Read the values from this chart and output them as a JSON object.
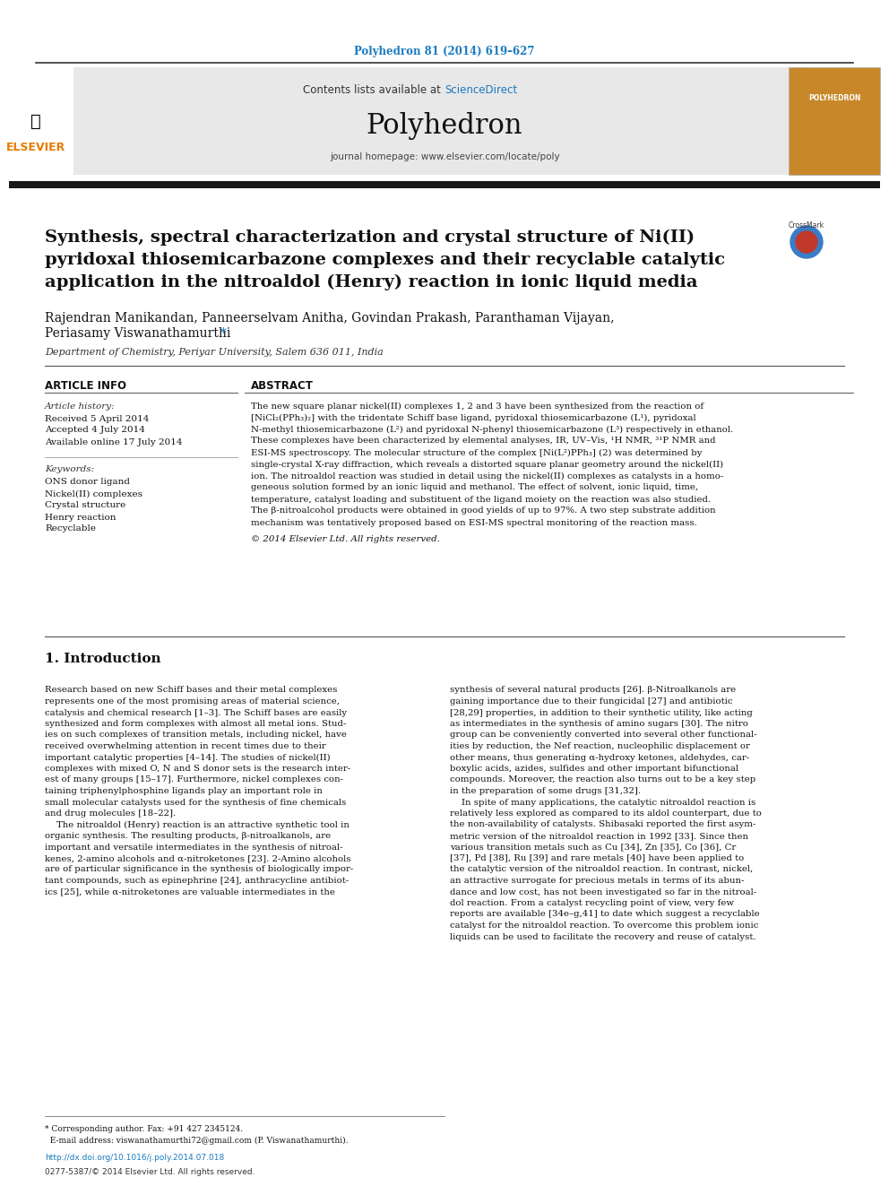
{
  "page_bg": "#ffffff",
  "top_journal_ref": "Polyhedron 81 (2014) 619–627",
  "top_journal_ref_color": "#1a7abf",
  "header_bg": "#e8e8e8",
  "header_text_contents": "Contents lists available at ",
  "header_text_sciencedirect": "ScienceDirect",
  "header_sciencedirect_color": "#1a7abf",
  "journal_name": "Polyhedron",
  "journal_homepage": "journal homepage: www.elsevier.com/locate/poly",
  "thick_bar_color": "#1a1a1a",
  "article_title": "Synthesis, spectral characterization and crystal structure of Ni(II)\npyridoxal thiosemicarbazone complexes and their recyclable catalytic\napplication in the nitroaldol (Henry) reaction in ionic liquid media",
  "authors": "Rajendran Manikandan, Panneerselvam Anitha, Govindan Prakash, Paranthaman Vijayan,\nPeriasamy Viswanathamurthi",
  "affiliation": "Department of Chemistry, Periyar University, Salem 636 011, India",
  "article_info_title": "ARTICLE INFO",
  "abstract_title": "ABSTRACT",
  "article_history_label": "Article history:",
  "received": "Received 5 April 2014",
  "accepted": "Accepted 4 July 2014",
  "available": "Available online 17 July 2014",
  "keywords_label": "Keywords:",
  "keywords": [
    "ONS donor ligand",
    "Nickel(II) complexes",
    "Crystal structure",
    "Henry reaction",
    "Recyclable"
  ],
  "abstract_text": "The new square planar nickel(II) complexes 1, 2 and 3 have been synthesized from the reaction of\n[NiCl₂(PPh₃)₂] with the tridentate Schiff base ligand, pyridoxal thiosemicarbazone (L¹), pyridoxal\nN-methyl thiosemicarbazone (L²) and pyridoxal N-phenyl thiosemicarbazone (L³) respectively in ethanol.\nThese complexes have been characterized by elemental analyses, IR, UV–Vis, ¹H NMR, ³¹P NMR and\nESI-MS spectroscopy. The molecular structure of the complex [Ni(L²)PPh₃] (2) was determined by\nsingle-crystal X-ray diffraction, which reveals a distorted square planar geometry around the nickel(II)\nion. The nitroaldol reaction was studied in detail using the nickel(II) complexes as catalysts in a homo-\ngeneous solution formed by an ionic liquid and methanol. The effect of solvent, ionic liquid, time,\ntemperature, catalyst loading and substituent of the ligand moiety on the reaction was also studied.\nThe β-nitroalcohol products were obtained in good yields of up to 97%. A two step substrate addition\nmechanism was tentatively proposed based on ESI-MS spectral monitoring of the reaction mass.",
  "copyright_text": "© 2014 Elsevier Ltd. All rights reserved.",
  "section1_title": "1. Introduction",
  "intro_col1": "Research based on new Schiff bases and their metal complexes\nrepresents one of the most promising areas of material science,\ncatalysis and chemical research [1–3]. The Schiff bases are easily\nsynthesized and form complexes with almost all metal ions. Stud-\nies on such complexes of transition metals, including nickel, have\nreceived overwhelming attention in recent times due to their\nimportant catalytic properties [4–14]. The studies of nickel(II)\ncomplexes with mixed O, N and S donor sets is the research inter-\nest of many groups [15–17]. Furthermore, nickel complexes con-\ntaining triphenylphosphine ligands play an important role in\nsmall molecular catalysts used for the synthesis of fine chemicals\nand drug molecules [18–22].\n    The nitroaldol (Henry) reaction is an attractive synthetic tool in\norganic synthesis. The resulting products, β-nitroalkanols, are\nimportant and versatile intermediates in the synthesis of nitroal-\nkenes, 2-amino alcohols and α-nitroketones [23]. 2-Amino alcohols\nare of particular significance in the synthesis of biologically impor-\ntant compounds, such as epinephrine [24], anthracycline antibiot-\nics [25], while α-nitroketones are valuable intermediates in the",
  "intro_col2": "synthesis of several natural products [26]. β-Nitroalkanols are\ngaining importance due to their fungicidal [27] and antibiotic\n[28,29] properties, in addition to their synthetic utility, like acting\nas intermediates in the synthesis of amino sugars [30]. The nitro\ngroup can be conveniently converted into several other functional-\nities by reduction, the Nef reaction, nucleophilic displacement or\nother means, thus generating α-hydroxy ketones, aldehydes, car-\nboxylic acids, azides, sulfides and other important bifunctional\ncompounds. Moreover, the reaction also turns out to be a key step\nin the preparation of some drugs [31,32].\n    In spite of many applications, the catalytic nitroaldol reaction is\nrelatively less explored as compared to its aldol counterpart, due to\nthe non-availability of catalysts. Shibasaki reported the first asym-\nmetric version of the nitroaldol reaction in 1992 [33]. Since then\nvarious transition metals such as Cu [34], Zn [35], Co [36], Cr\n[37], Pd [38], Ru [39] and rare metals [40] have been applied to\nthe catalytic version of the nitroaldol reaction. In contrast, nickel,\nan attractive surrogate for precious metals in terms of its abun-\ndance and low cost, has not been investigated so far in the nitroal-\ndol reaction. From a catalyst recycling point of view, very few\nreports are available [34e–g,41] to date which suggest a recyclable\ncatalyst for the nitroaldol reaction. To overcome this problem ionic\nliquids can be used to facilitate the recovery and reuse of catalyst.",
  "footer_text": "* Corresponding author. Fax: +91 427 2345124.\n  E-mail address: viswanathamurthi72@gmail.com (P. Viswanathamurthi).",
  "doi_text": "http://dx.doi.org/10.1016/j.poly.2014.07.018",
  "issn_text": "0277-5387/© 2014 Elsevier Ltd. All rights reserved.",
  "link_color": "#1a7abf"
}
